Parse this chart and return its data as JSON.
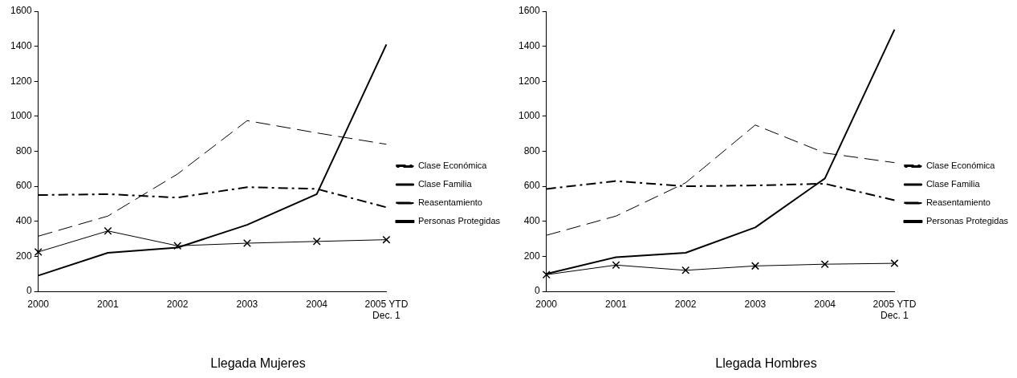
{
  "chart_data": [
    {
      "type": "line",
      "title": "Llegada Mujeres",
      "categories": [
        "2000",
        "2001",
        "2002",
        "2003",
        "2004",
        "2005 YTD\nDec. 1"
      ],
      "ylim": [
        0,
        1600
      ],
      "yticks": [
        0,
        200,
        400,
        600,
        800,
        1000,
        1200,
        1400,
        1600
      ],
      "grid": false,
      "legend": "right",
      "marker": "none",
      "series": [
        {
          "name": "Clase Económica",
          "color": "#000000",
          "line_style": "dashdot",
          "values": [
            550,
            555,
            535,
            595,
            585,
            480
          ]
        },
        {
          "name": "Clase Familia",
          "color": "#000000",
          "line_style": "solid",
          "marker": "cross",
          "values": [
            225,
            345,
            260,
            275,
            285,
            295
          ]
        },
        {
          "name": "Reasentamiento",
          "color": "#000000",
          "line_style": "dashed",
          "values": [
            315,
            430,
            670,
            975,
            905,
            840
          ]
        },
        {
          "name": "Personas Protegidas",
          "color": "#000000",
          "line_style": "solid",
          "values": [
            90,
            220,
            250,
            380,
            555,
            1410
          ]
        }
      ]
    },
    {
      "type": "line",
      "title": "Llegada Hombres",
      "categories": [
        "2000",
        "2001",
        "2002",
        "2003",
        "2004",
        "2005 YTD\nDec. 1"
      ],
      "ylim": [
        0,
        1600
      ],
      "yticks": [
        0,
        200,
        400,
        600,
        800,
        1000,
        1200,
        1400,
        1600
      ],
      "grid": false,
      "legend": "right",
      "marker": "none",
      "series": [
        {
          "name": "Clase Económica",
          "color": "#000000",
          "line_style": "dashdot",
          "values": [
            585,
            630,
            600,
            605,
            615,
            520
          ]
        },
        {
          "name": "Clase Familia",
          "color": "#000000",
          "line_style": "solid",
          "marker": "cross",
          "values": [
            95,
            150,
            120,
            145,
            155,
            160
          ]
        },
        {
          "name": "Reasentamiento",
          "color": "#000000",
          "line_style": "dashed",
          "values": [
            320,
            430,
            620,
            950,
            790,
            735
          ]
        },
        {
          "name": "Personas Protegidas",
          "color": "#000000",
          "line_style": "solid",
          "values": [
            100,
            195,
            220,
            365,
            645,
            1495
          ]
        }
      ]
    }
  ]
}
